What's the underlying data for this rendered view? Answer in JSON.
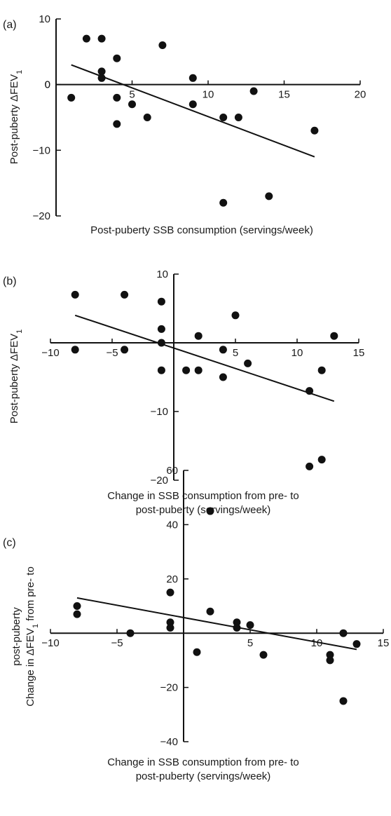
{
  "chart_data": [
    {
      "type": "scatter",
      "panel_label": "(a)",
      "xlabel": [
        "Post-puberty SSB consumption (servings/week)"
      ],
      "ylabel": [
        "Post-puberty ΔFEV",
        "1"
      ],
      "xlim": [
        0,
        20
      ],
      "ylim": [
        -20,
        10
      ],
      "x_ticks": [
        5,
        10,
        15,
        20
      ],
      "y_ticks": [
        10,
        0,
        -10,
        -20
      ],
      "x_tick_labels": [
        "5",
        "10",
        "15",
        "20"
      ],
      "y_tick_labels": [
        "10",
        "0",
        "−10",
        "−20"
      ],
      "points": [
        {
          "x": 1,
          "y": -2
        },
        {
          "x": 2,
          "y": 7
        },
        {
          "x": 3,
          "y": 7
        },
        {
          "x": 3,
          "y": 2
        },
        {
          "x": 3,
          "y": 1
        },
        {
          "x": 4,
          "y": 4
        },
        {
          "x": 4,
          "y": -2
        },
        {
          "x": 4,
          "y": -6
        },
        {
          "x": 5,
          "y": -3
        },
        {
          "x": 6,
          "y": -5
        },
        {
          "x": 7,
          "y": 6
        },
        {
          "x": 9,
          "y": 1
        },
        {
          "x": 9,
          "y": -3
        },
        {
          "x": 11,
          "y": -5
        },
        {
          "x": 11,
          "y": -18
        },
        {
          "x": 12,
          "y": -5
        },
        {
          "x": 13,
          "y": -1
        },
        {
          "x": 14,
          "y": -17
        },
        {
          "x": 17,
          "y": -7
        }
      ],
      "trendline": [
        {
          "x": 1,
          "y": 3
        },
        {
          "x": 17,
          "y": -11
        }
      ]
    },
    {
      "type": "scatter",
      "panel_label": "(b)",
      "xlabel": [
        "Change in SSB consumption from pre- to",
        "post-puberty (servings/week)"
      ],
      "ylabel": [
        "Post-puberty ΔFEV",
        "1"
      ],
      "xlim": [
        -10,
        15
      ],
      "ylim": [
        -20,
        10
      ],
      "x_ticks": [
        -10,
        -5,
        5,
        10,
        15
      ],
      "y_ticks": [
        10,
        -10,
        -20
      ],
      "x_tick_labels": [
        "−10",
        "−5",
        "5",
        "10",
        "15"
      ],
      "y_tick_labels": [
        "10",
        "−10",
        "−20"
      ],
      "points": [
        {
          "x": -8,
          "y": 7
        },
        {
          "x": -8,
          "y": -1
        },
        {
          "x": -4,
          "y": 7
        },
        {
          "x": -4,
          "y": -1
        },
        {
          "x": -1,
          "y": 6
        },
        {
          "x": -1,
          "y": 2
        },
        {
          "x": -1,
          "y": 0
        },
        {
          "x": -1,
          "y": -4
        },
        {
          "x": 1,
          "y": -4
        },
        {
          "x": 2,
          "y": 1
        },
        {
          "x": 2,
          "y": -4
        },
        {
          "x": 4,
          "y": -1
        },
        {
          "x": 4,
          "y": -5
        },
        {
          "x": 5,
          "y": 4
        },
        {
          "x": 6,
          "y": -3
        },
        {
          "x": 11,
          "y": -7
        },
        {
          "x": 11,
          "y": -18
        },
        {
          "x": 12,
          "y": -4
        },
        {
          "x": 12,
          "y": -17
        },
        {
          "x": 13,
          "y": 1
        }
      ],
      "trendline": [
        {
          "x": -8,
          "y": 4
        },
        {
          "x": 13,
          "y": -8.5
        }
      ]
    },
    {
      "type": "scatter",
      "panel_label": "(c)",
      "xlabel": [
        "Change in SSB consumption from pre- to",
        "post-puberty (servings/week)"
      ],
      "ylabel": [
        "Change in ΔFEV",
        "1",
        " from pre- to",
        "post-puberty"
      ],
      "xlim": [
        -10,
        15
      ],
      "ylim": [
        -40,
        60
      ],
      "x_ticks": [
        -10,
        -5,
        5,
        10,
        15
      ],
      "y_ticks": [
        60,
        40,
        20,
        -20,
        -40
      ],
      "x_tick_labels": [
        "−10",
        "−5",
        "5",
        "10",
        "15"
      ],
      "y_tick_labels": [
        "60",
        "40",
        "20",
        "−20",
        "−40"
      ],
      "points": [
        {
          "x": -8,
          "y": 10
        },
        {
          "x": -8,
          "y": 7
        },
        {
          "x": -4,
          "y": 0
        },
        {
          "x": -1,
          "y": 15
        },
        {
          "x": -1,
          "y": 4
        },
        {
          "x": -1,
          "y": 2
        },
        {
          "x": 1,
          "y": -7
        },
        {
          "x": 2,
          "y": 45
        },
        {
          "x": 2,
          "y": 8
        },
        {
          "x": 4,
          "y": 4
        },
        {
          "x": 4,
          "y": 2
        },
        {
          "x": 5,
          "y": 3
        },
        {
          "x": 6,
          "y": -8
        },
        {
          "x": 11,
          "y": -8
        },
        {
          "x": 11,
          "y": -10
        },
        {
          "x": 12,
          "y": 0
        },
        {
          "x": 12,
          "y": -25
        },
        {
          "x": 13,
          "y": -4
        }
      ],
      "trendline": [
        {
          "x": -8,
          "y": 13
        },
        {
          "x": 13,
          "y": -6
        }
      ]
    }
  ]
}
